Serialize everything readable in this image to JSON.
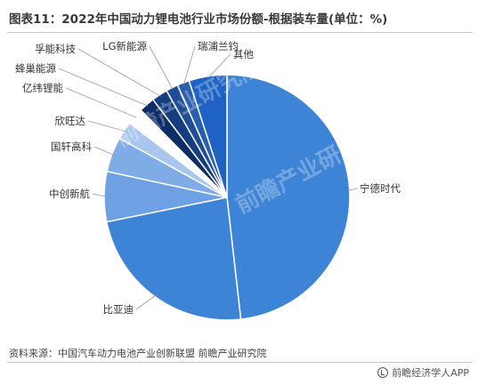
{
  "header": {
    "title": "图表11：2022年中国动力锂电池行业市场份额-根据装车量(单位：%)"
  },
  "chart_data": {
    "type": "pie",
    "categories": [
      "宁德时代",
      "比亚迪",
      "中创新航",
      "国轩高科",
      "欣旺达",
      "亿纬锂能",
      "蜂巢能源",
      "孚能科技",
      "LG新能源",
      "瑞浦兰钧",
      "其他"
    ],
    "values": [
      48.2,
      23.6,
      6.6,
      4.6,
      2.4,
      2.2,
      2.1,
      2.1,
      1.6,
      1.6,
      5.0
    ],
    "colors": [
      "#3d84d6",
      "#3d84d6",
      "#6ea1e3",
      "#7fabe6",
      "#a9c6ef",
      "#ffffff",
      "#0d2d66",
      "#153d80",
      "#1f4d96",
      "#2a5fae",
      "#1e63c4"
    ],
    "grid": false,
    "legend": "none"
  },
  "footer": {
    "source": "资料来源：中国汽车动力电池产业创新联盟 前瞻产业研究院",
    "brand": "前瞻经济学人APP",
    "watermark": "前瞻产业研究院"
  }
}
